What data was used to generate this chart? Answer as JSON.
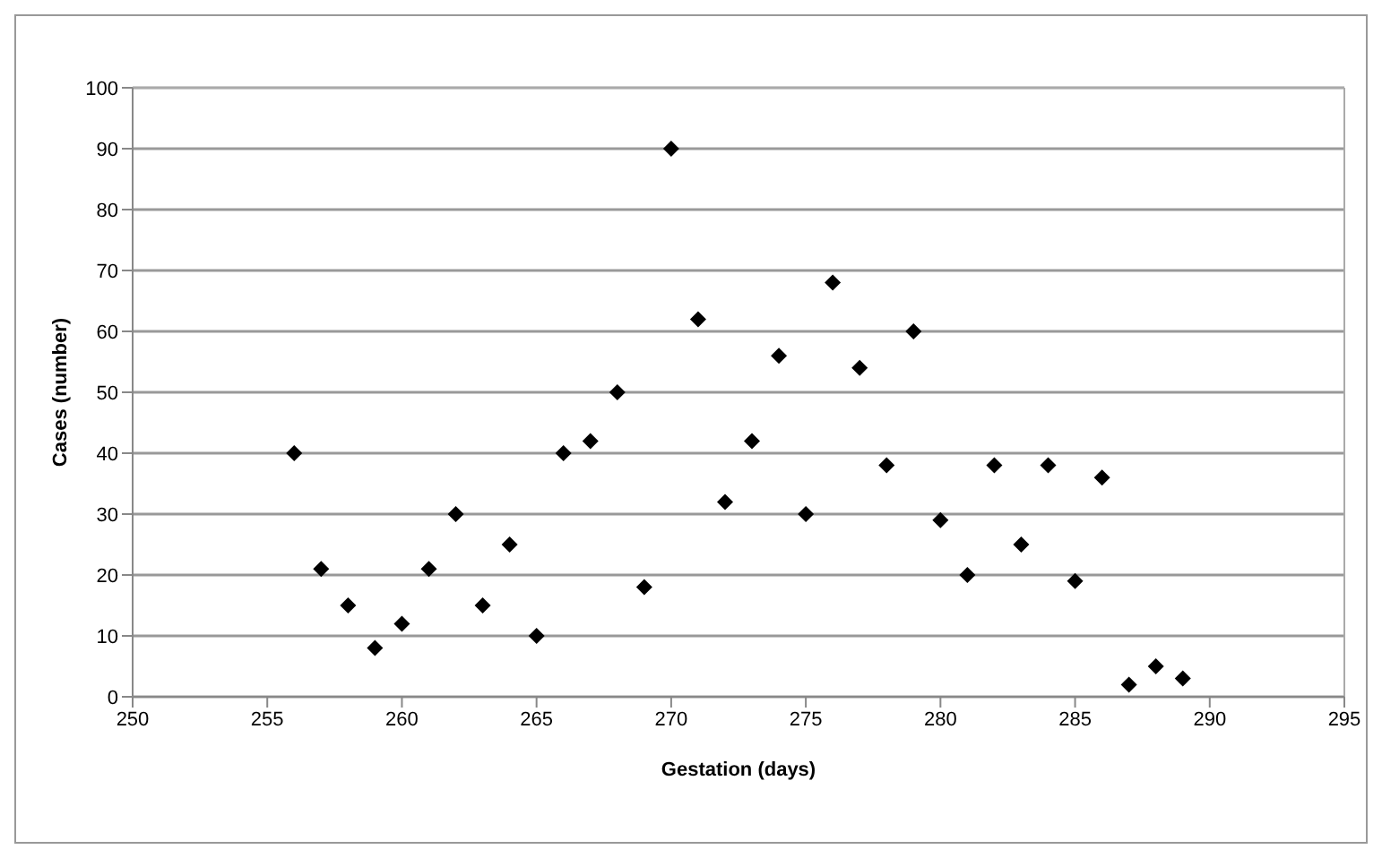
{
  "chart_data": {
    "type": "scatter",
    "xlabel": "Gestation (days)",
    "ylabel": "Cases (number)",
    "x": [
      256,
      257,
      258,
      259,
      260,
      261,
      262,
      263,
      264,
      265,
      266,
      267,
      268,
      269,
      270,
      271,
      272,
      273,
      274,
      275,
      276,
      277,
      278,
      279,
      280,
      281,
      282,
      283,
      284,
      285,
      286,
      287,
      288,
      289
    ],
    "series": [
      {
        "color": "#000000",
        "values": [
          40,
          21,
          15,
          8,
          12,
          21,
          30,
          15,
          25,
          10,
          40,
          42,
          50,
          18,
          90,
          62,
          32,
          42,
          56,
          30,
          68,
          54,
          38,
          60,
          29,
          20,
          38,
          25,
          38,
          19,
          36,
          2,
          5,
          3
        ]
      }
    ],
    "xlim": [
      250,
      295
    ],
    "xticks": [
      250,
      255,
      260,
      265,
      270,
      275,
      280,
      285,
      290,
      295
    ],
    "ylim": [
      0,
      100
    ],
    "yticks": [
      0,
      10,
      20,
      30,
      40,
      50,
      60,
      70,
      80,
      90,
      100
    ],
    "grid": "y",
    "marker": "diamond",
    "legend": false
  }
}
